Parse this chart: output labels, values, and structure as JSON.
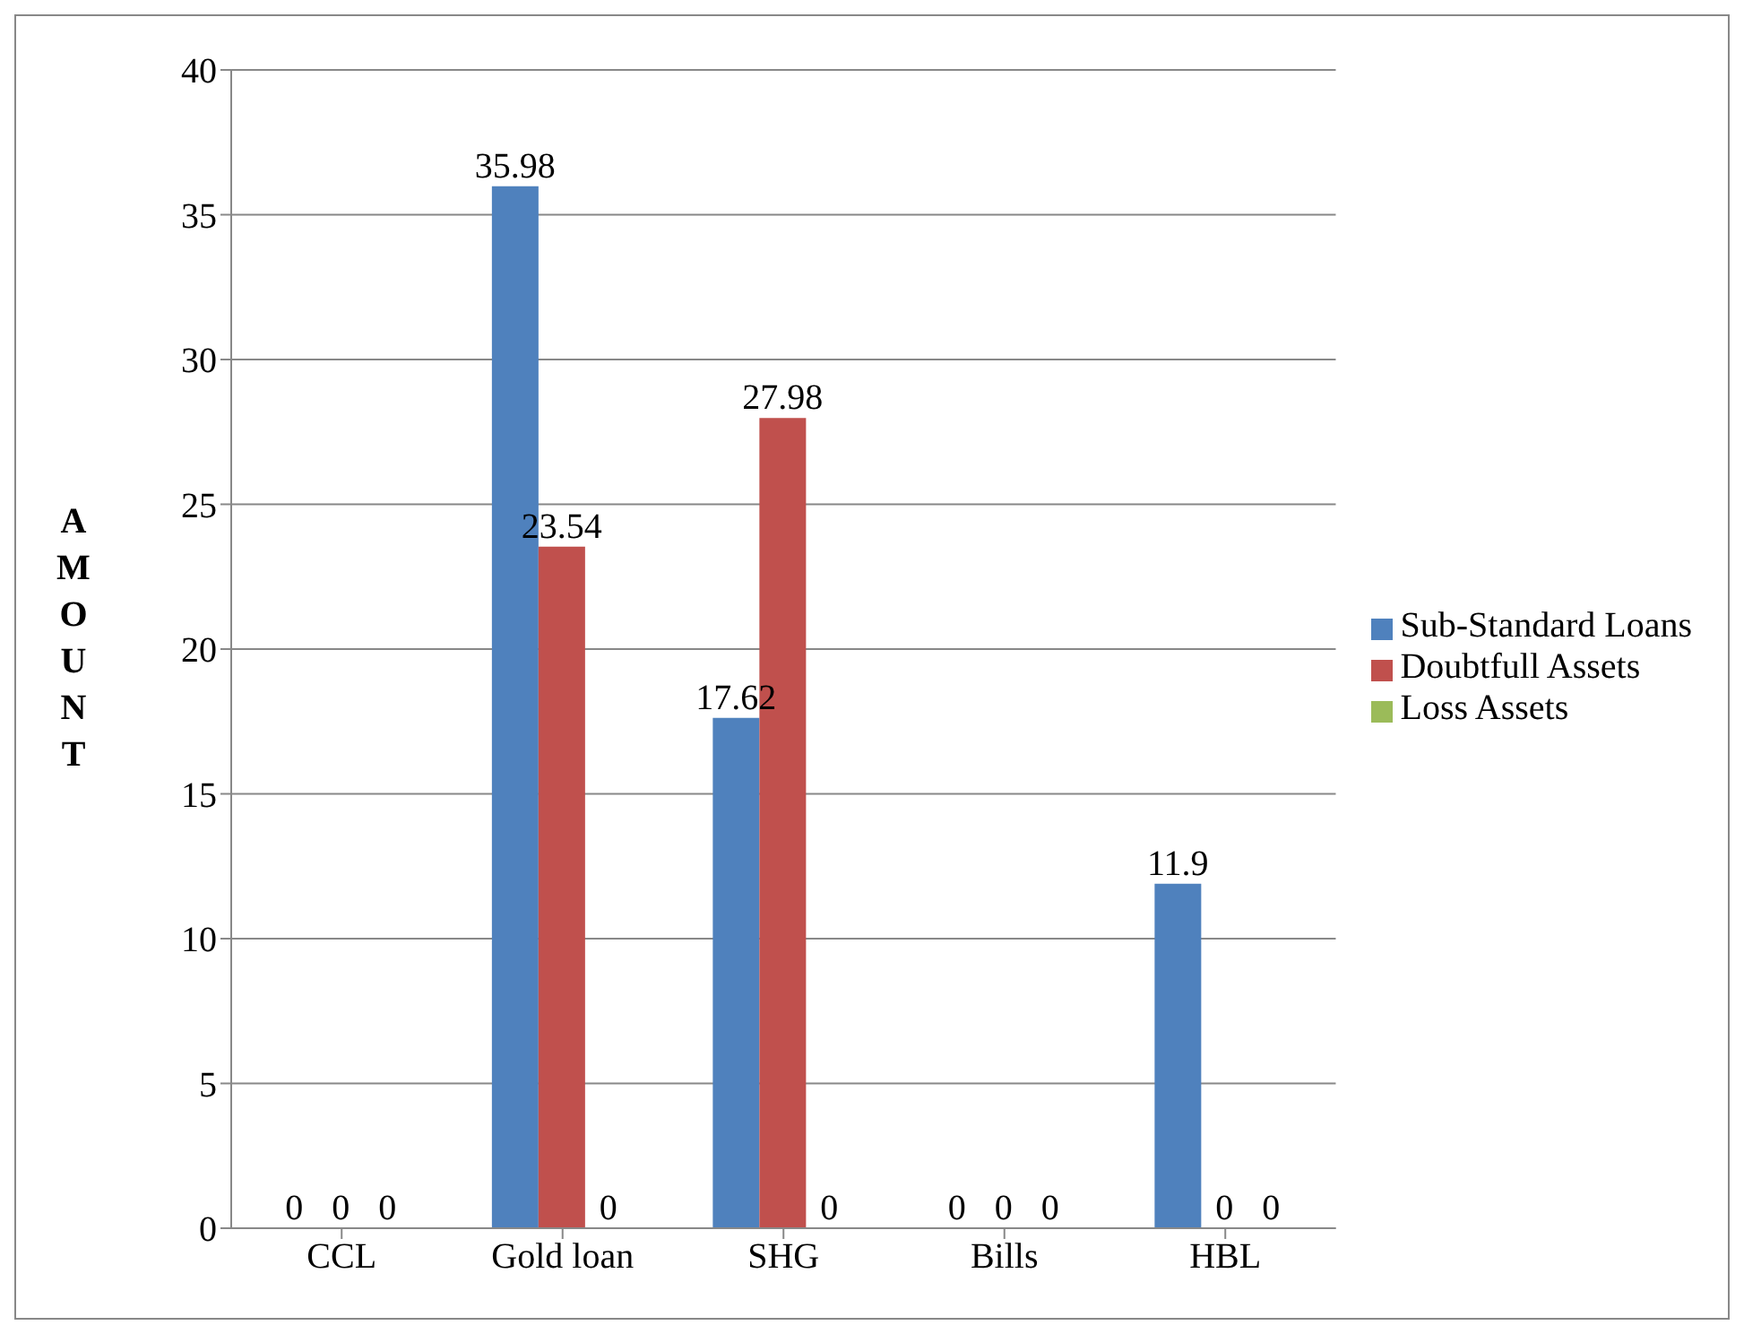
{
  "chart_data": {
    "type": "bar",
    "ylabel": "AMOUNT",
    "categories": [
      "CCL",
      "Gold loan",
      "SHG",
      "Bills",
      "HBL"
    ],
    "series": [
      {
        "name": "Sub-Standard Loans",
        "color": "#4f81bd",
        "values": [
          0,
          35.98,
          17.62,
          0,
          11.9
        ]
      },
      {
        "name": "Doubtfull Assets",
        "color": "#c0504d",
        "values": [
          0,
          23.54,
          27.98,
          0,
          0
        ]
      },
      {
        "name": "Loss Assets",
        "color": "#9bbb59",
        "values": [
          0,
          0,
          0,
          0,
          0
        ]
      }
    ],
    "ylim": [
      0,
      40
    ],
    "yticks": [
      0,
      5,
      10,
      15,
      20,
      25,
      30,
      35,
      40
    ],
    "grid": "y",
    "legend": "right",
    "data_labels": true
  }
}
